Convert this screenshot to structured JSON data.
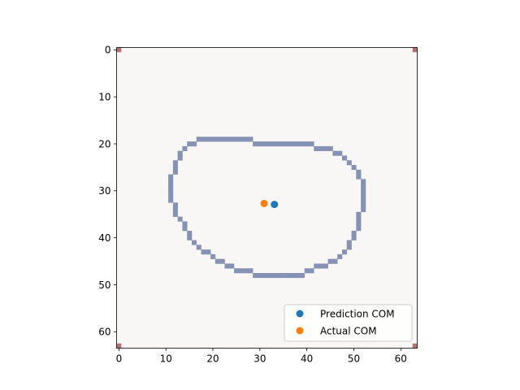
{
  "chart_data": {
    "type": "image-scatter",
    "image_size": 64,
    "xlim": [
      -0.5,
      63.5
    ],
    "ylim": [
      63.5,
      -0.5
    ],
    "x_ticks": [
      0,
      10,
      20,
      30,
      40,
      50,
      60
    ],
    "y_ticks": [
      0,
      10,
      20,
      30,
      40,
      50,
      60
    ],
    "background_color": "#f9f7f6",
    "contour_color": "#8592b3",
    "corner_color": "#b5736f",
    "corner_pixels": [
      [
        0,
        0
      ],
      [
        63,
        0
      ],
      [
        0,
        63
      ],
      [
        63,
        63
      ]
    ],
    "contour_rows": [
      {
        "y": 19,
        "x_min": 17,
        "x_max": 28
      },
      {
        "y": 20,
        "x_min": 15,
        "x_max": 41
      },
      {
        "y": 21,
        "x_min": 14,
        "x_max": 45
      },
      {
        "y": 22,
        "x_min": 13,
        "x_max": 47
      },
      {
        "y": 23,
        "x_min": 13,
        "x_max": 48
      },
      {
        "y": 24,
        "x_min": 12,
        "x_max": 49
      },
      {
        "y": 25,
        "x_min": 12,
        "x_max": 50
      },
      {
        "y": 26,
        "x_min": 12,
        "x_max": 51
      },
      {
        "y": 27,
        "x_min": 11,
        "x_max": 51
      },
      {
        "y": 28,
        "x_min": 11,
        "x_max": 52
      },
      {
        "y": 29,
        "x_min": 11,
        "x_max": 52
      },
      {
        "y": 30,
        "x_min": 11,
        "x_max": 52
      },
      {
        "y": 31,
        "x_min": 11,
        "x_max": 52
      },
      {
        "y": 32,
        "x_min": 11,
        "x_max": 52
      },
      {
        "y": 33,
        "x_min": 12,
        "x_max": 52
      },
      {
        "y": 34,
        "x_min": 12,
        "x_max": 52
      },
      {
        "y": 35,
        "x_min": 12,
        "x_max": 51
      },
      {
        "y": 36,
        "x_min": 13,
        "x_max": 51
      },
      {
        "y": 37,
        "x_min": 14,
        "x_max": 51
      },
      {
        "y": 38,
        "x_min": 14,
        "x_max": 51
      },
      {
        "y": 39,
        "x_min": 15,
        "x_max": 50
      },
      {
        "y": 40,
        "x_min": 15,
        "x_max": 50
      },
      {
        "y": 41,
        "x_min": 16,
        "x_max": 49
      },
      {
        "y": 42,
        "x_min": 17,
        "x_max": 49
      },
      {
        "y": 43,
        "x_min": 18,
        "x_max": 48
      },
      {
        "y": 44,
        "x_min": 20,
        "x_max": 47
      },
      {
        "y": 45,
        "x_min": 21,
        "x_max": 46
      },
      {
        "y": 46,
        "x_min": 23,
        "x_max": 44
      },
      {
        "y": 47,
        "x_min": 25,
        "x_max": 41
      },
      {
        "y": 48,
        "x_min": 29,
        "x_max": 39
      }
    ],
    "series": [
      {
        "name": "Prediction COM",
        "color": "#1f77b4",
        "x": [
          33.1
        ],
        "y": [
          32.9
        ]
      },
      {
        "name": "Actual COM",
        "color": "#ff7f0e",
        "x": [
          30.9
        ],
        "y": [
          32.7
        ]
      }
    ],
    "legend_position": "lower-right",
    "grid": false
  }
}
